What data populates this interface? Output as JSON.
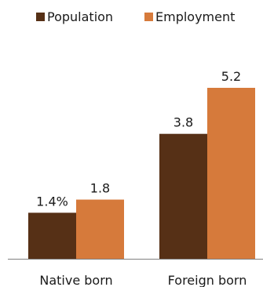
{
  "colors": {
    "Population": "#563016",
    "Employment": "#d67a3b",
    "axis": "#808080"
  },
  "legend": [
    "Population",
    "Employment"
  ],
  "chart_data": {
    "type": "bar",
    "categories": [
      "Native born",
      "Foreign born"
    ],
    "series": [
      {
        "name": "Population",
        "values": [
          1.4,
          3.8
        ],
        "labels": [
          "1.4%",
          "3.8"
        ]
      },
      {
        "name": "Employment",
        "values": [
          1.8,
          5.2
        ],
        "labels": [
          "1.8",
          "5.2"
        ]
      }
    ],
    "title": "",
    "xlabel": "",
    "ylabel": "",
    "ylim": [
      0,
      5.2
    ],
    "grid": false,
    "legend_position": "top"
  }
}
